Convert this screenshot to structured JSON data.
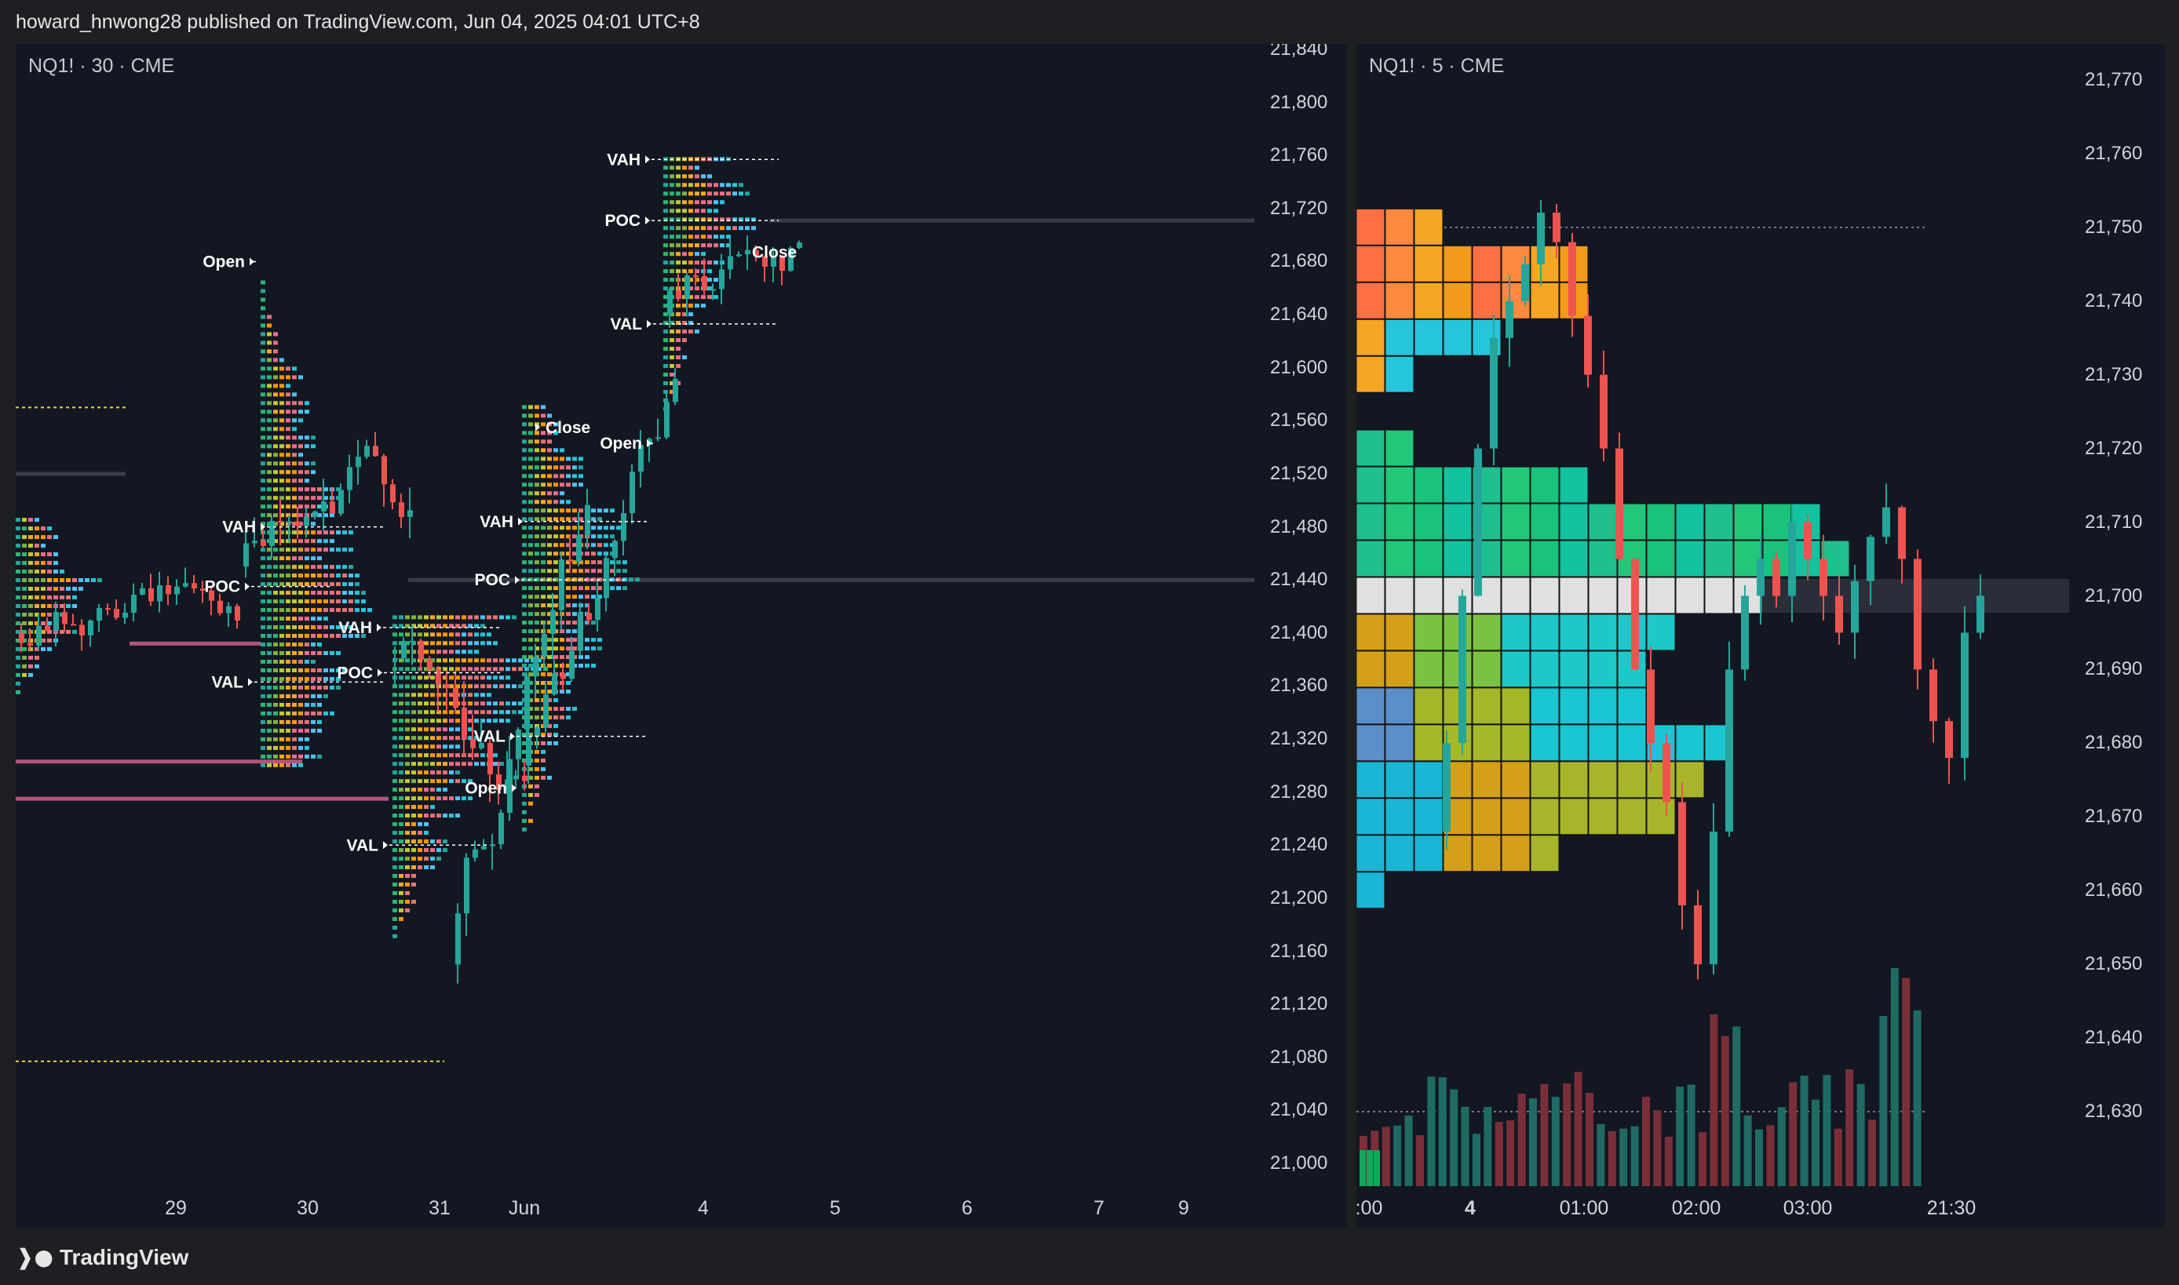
{
  "header": {
    "publish_text": "howard_hnwong28 published on TradingView.com, Jun 04, 2025 04:01 UTC+8"
  },
  "footer": {
    "brand": "TradingView",
    "logo_icon": "tradingview-logo-icon"
  },
  "colors": {
    "background": "#131722",
    "up": "#26a69a",
    "down": "#ef5350",
    "grid": "#2a2e39"
  },
  "chart_data": [
    {
      "type": "candlestick",
      "title": "NQ1! · 30 · CME",
      "symbol": "NQ1!",
      "interval": "30",
      "exchange": "CME",
      "y_ticks": [
        "21,840",
        "21,800",
        "21,760",
        "21,720",
        "21,680",
        "21,640",
        "21,600",
        "21,560",
        "21,520",
        "21,480",
        "21,440",
        "21,400",
        "21,360",
        "21,320",
        "21,280",
        "21,240",
        "21,200",
        "21,160",
        "21,120",
        "21,080",
        "21,040",
        "21,000"
      ],
      "ylim": [
        21000,
        21840
      ],
      "x_ticks": [
        "29",
        "30",
        "31",
        "Jun",
        "4",
        "5",
        "6",
        "7",
        "9"
      ],
      "session_levels": [
        {
          "session": "30",
          "open": 21680,
          "close": null,
          "vah": 21480,
          "poc": 21435,
          "val": 21363
        },
        {
          "session": "31",
          "open": null,
          "close": null,
          "vah": 21404,
          "poc": 21370,
          "val": 21240
        },
        {
          "session": "Jun",
          "open": 21283,
          "close": 21555,
          "vah": 21484,
          "poc": 21440,
          "val": 21322
        },
        {
          "session": "4",
          "open": 21543,
          "close": 21687,
          "vah": 21757,
          "poc": 21711,
          "val": 21633
        }
      ],
      "level_labels": {
        "vah": "VAH",
        "poc": "POC",
        "val": "VAL",
        "open": "Open",
        "close": "Close"
      },
      "horizontal_lines": [
        21711,
        21440
      ]
    },
    {
      "type": "candlestick",
      "title": "NQ1! · 5 · CME",
      "symbol": "NQ1!",
      "interval": "5",
      "exchange": "CME",
      "y_ticks": [
        "21,770",
        "21,760",
        "21,750",
        "21,740",
        "21,730",
        "21,720",
        "21,710",
        "21,700",
        "21,690",
        "21,680",
        "21,670",
        "21,660",
        "21,650",
        "21,640",
        "21,630"
      ],
      "ylim": [
        21622,
        21774
      ],
      "x_ticks": [
        ":00",
        "4",
        "01:00",
        "02:00",
        "03:00",
        "21:30"
      ],
      "x_ticks_bold": [
        "4"
      ],
      "volume_profile_rows": [
        {
          "price": 21750,
          "cells": 3
        },
        {
          "price": 21745,
          "cells": 8
        },
        {
          "price": 21740,
          "cells": 8
        },
        {
          "price": 21735,
          "cells": 5
        },
        {
          "price": 21730,
          "cells": 2
        },
        {
          "price": 21720,
          "cells": 2
        },
        {
          "price": 21715,
          "cells": 8
        },
        {
          "price": 21710,
          "cells": 16
        },
        {
          "price": 21705,
          "cells": 17
        },
        {
          "price": 21700,
          "cells": 14
        },
        {
          "price": 21695,
          "cells": 11
        },
        {
          "price": 21690,
          "cells": 10
        },
        {
          "price": 21685,
          "cells": 10
        },
        {
          "price": 21680,
          "cells": 13
        },
        {
          "price": 21675,
          "cells": 12
        },
        {
          "price": 21670,
          "cells": 11
        },
        {
          "price": 21665,
          "cells": 7
        },
        {
          "price": 21660,
          "cells": 1
        }
      ],
      "poc_price": 21700,
      "vah_line_price": 21750
    }
  ]
}
